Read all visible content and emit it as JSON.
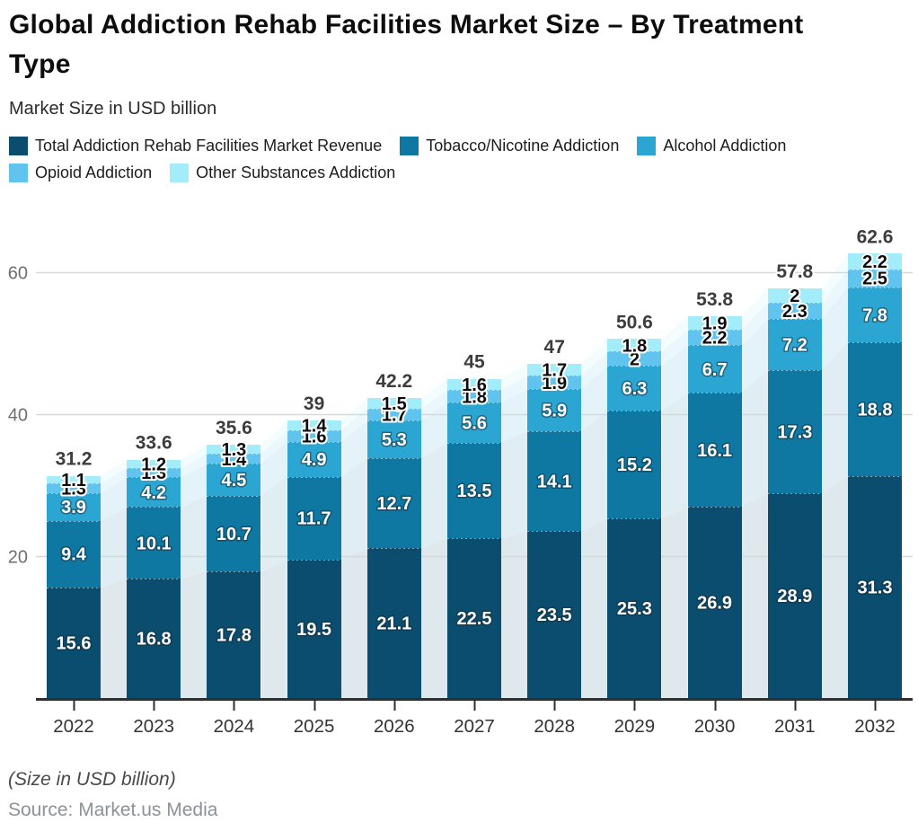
{
  "header": {
    "title": "Global Addiction Rehab Facilities Market Size – By Treatment Type",
    "subtitle": "Market Size in USD billion"
  },
  "chart_data": {
    "type": "bar",
    "stacked": true,
    "title": "Global Addiction Rehab Facilities Market Size – By Treatment Type",
    "subtitle": "Market Size in USD billion",
    "xlabel": "",
    "ylabel": "Market Size in USD billion",
    "categories": [
      "2022",
      "2023",
      "2024",
      "2025",
      "2026",
      "2027",
      "2028",
      "2029",
      "2030",
      "2031",
      "2032"
    ],
    "series": [
      {
        "name": "Total Addiction Rehab Facilities Market Revenue",
        "color": "#0b4d6e",
        "values": [
          15.6,
          16.8,
          17.8,
          19.5,
          21.1,
          22.5,
          23.5,
          25.3,
          26.9,
          28.9,
          31.3
        ]
      },
      {
        "name": "Tobacco/Nicotine Addiction",
        "color": "#0e77a2",
        "values": [
          9.4,
          10.1,
          10.7,
          11.7,
          12.7,
          13.5,
          14.1,
          15.2,
          16.1,
          17.3,
          18.8
        ]
      },
      {
        "name": "Alcohol Addiction",
        "color": "#2ba6d2",
        "values": [
          3.9,
          4.2,
          4.5,
          4.9,
          5.3,
          5.6,
          5.9,
          6.3,
          6.7,
          7.2,
          7.8
        ]
      },
      {
        "name": "Opioid Addiction",
        "color": "#61c4ee",
        "values": [
          1.3,
          1.3,
          1.4,
          1.6,
          1.7,
          1.8,
          1.9,
          2,
          2.2,
          2.3,
          2.5
        ]
      },
      {
        "name": "Other Substances Addiction",
        "color": "#a3edfb",
        "values": [
          1.1,
          1.2,
          1.3,
          1.4,
          1.5,
          1.6,
          1.7,
          1.8,
          1.9,
          2,
          2.2
        ]
      }
    ],
    "totals": [
      31.2,
      33.6,
      35.6,
      39,
      42.2,
      45,
      47,
      50.6,
      53.8,
      57.8,
      62.6
    ],
    "y_axis": {
      "ticks": [
        20,
        40,
        60
      ],
      "min": 0,
      "max": 65,
      "grid": true
    },
    "legend_position": "top",
    "label_colors": {
      "large_segments": "#ffffff",
      "small_segments": "#0d0d0d",
      "totals": "#3d3d3d"
    }
  },
  "footer": {
    "size_note": "(Size in USD billion)",
    "source": "Source: Market.us Media"
  }
}
